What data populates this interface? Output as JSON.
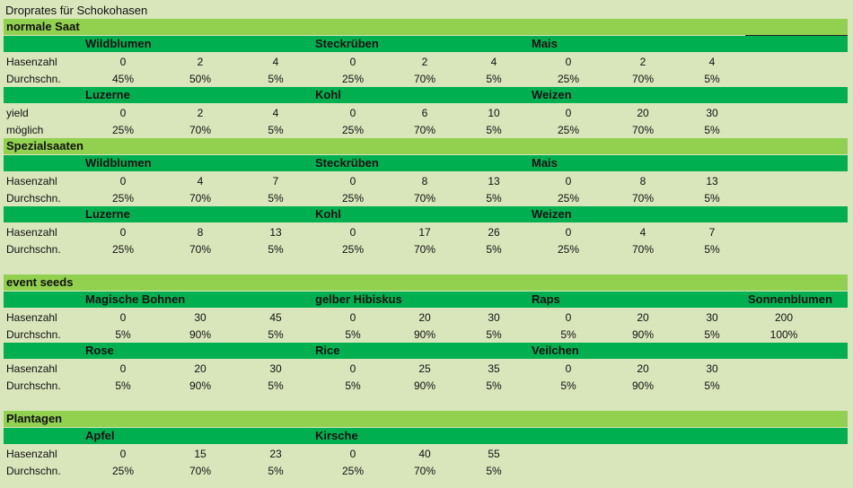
{
  "page_title": "Droprates für Schokohasen",
  "blocks": [
    {
      "section": "normale Saat",
      "groups": [
        {
          "crops": [
            "Wildblumen",
            "Steckrüben",
            "Mais"
          ],
          "rows": [
            {
              "label": "Hasenzahl",
              "values": [
                "0",
                "2",
                "4",
                "0",
                "2",
                "4",
                "0",
                "2",
                "4"
              ]
            },
            {
              "label": "Durchschn.",
              "values": [
                "45%",
                "50%",
                "5%",
                "25%",
                "70%",
                "5%",
                "25%",
                "70%",
                "5%"
              ]
            }
          ]
        },
        {
          "crops": [
            "Luzerne",
            "Kohl",
            "Weizen"
          ],
          "rows": [
            {
              "label": "yield",
              "values": [
                "0",
                "2",
                "4",
                "0",
                "6",
                "10",
                "0",
                "20",
                "30"
              ]
            },
            {
              "label": "möglich",
              "values": [
                "25%",
                "70%",
                "5%",
                "25%",
                "70%",
                "5%",
                "25%",
                "70%",
                "5%"
              ]
            }
          ]
        }
      ]
    },
    {
      "section": "Spezialsaaten",
      "groups": [
        {
          "crops": [
            "Wildblumen",
            "Steckrüben",
            "Mais"
          ],
          "rows": [
            {
              "label": "Hasenzahl",
              "values": [
                "0",
                "4",
                "7",
                "0",
                "8",
                "13",
                "0",
                "8",
                "13"
              ]
            },
            {
              "label": "Durchschn.",
              "values": [
                "25%",
                "70%",
                "5%",
                "25%",
                "70%",
                "5%",
                "25%",
                "70%",
                "5%"
              ]
            }
          ]
        },
        {
          "crops": [
            "Luzerne",
            "Kohl",
            "Weizen"
          ],
          "rows": [
            {
              "label": "Hasenzahl",
              "values": [
                "0",
                "8",
                "13",
                "0",
                "17",
                "26",
                "0",
                "4",
                "7"
              ]
            },
            {
              "label": "Durchschn.",
              "values": [
                "25%",
                "70%",
                "5%",
                "25%",
                "70%",
                "5%",
                "25%",
                "70%",
                "5%"
              ]
            }
          ]
        }
      ]
    },
    {
      "section": "event seeds",
      "groups": [
        {
          "crops": [
            "Magische Bohnen",
            "gelber Hibiskus",
            "Raps",
            "Sonnenblumen"
          ],
          "rows": [
            {
              "label": "Hasenzahl",
              "values": [
                "0",
                "30",
                "45",
                "0",
                "20",
                "30",
                "0",
                "20",
                "30",
                "200"
              ]
            },
            {
              "label": "Durchschn.",
              "values": [
                "5%",
                "90%",
                "5%",
                "5%",
                "90%",
                "5%",
                "5%",
                "90%",
                "5%",
                "100%"
              ]
            }
          ]
        },
        {
          "crops": [
            "Rose",
            "Rice",
            "Veilchen"
          ],
          "rows": [
            {
              "label": "Hasenzahl",
              "values": [
                "0",
                "20",
                "30",
                "0",
                "25",
                "35",
                "0",
                "20",
                "30"
              ]
            },
            {
              "label": "Durchschn.",
              "values": [
                "5%",
                "90%",
                "5%",
                "5%",
                "90%",
                "5%",
                "5%",
                "90%",
                "5%"
              ]
            }
          ]
        }
      ]
    },
    {
      "section": "Plantagen",
      "groups": [
        {
          "crops": [
            "Apfel",
            "Kirsche"
          ],
          "rows": [
            {
              "label": "Hasenzahl",
              "values": [
                "0",
                "15",
                "23",
                "0",
                "40",
                "55"
              ]
            },
            {
              "label": "Durchschn.",
              "values": [
                "25%",
                "70%",
                "5%",
                "25%",
                "70%",
                "5%"
              ]
            }
          ]
        }
      ]
    }
  ],
  "colors": {
    "page_bg": "#d9e5bb",
    "section_bar": "#92d050",
    "crop_bar": "#00b050"
  }
}
